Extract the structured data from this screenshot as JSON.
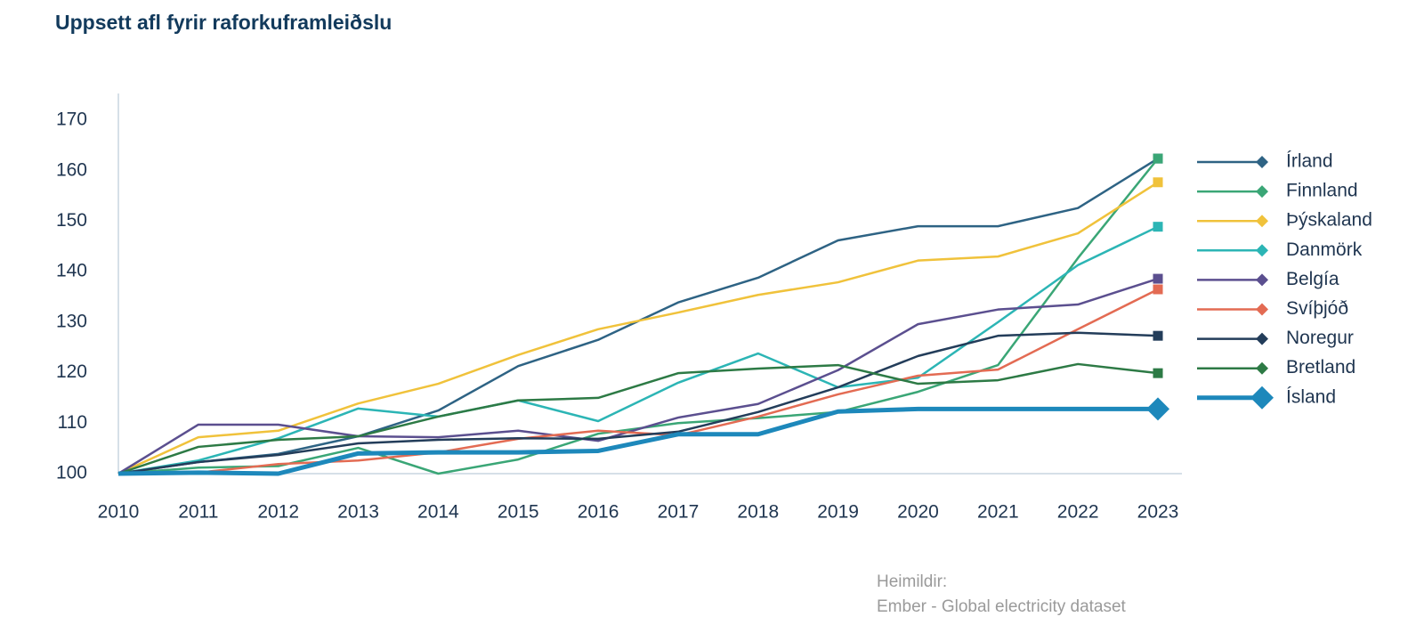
{
  "chart_data": {
    "type": "line",
    "title": "Uppsett afl fyrir raforkuframleiðslu",
    "source": [
      "Heimildir:",
      "Ember - Global electricity dataset"
    ],
    "x": [
      2010,
      2011,
      2012,
      2013,
      2014,
      2015,
      2016,
      2017,
      2018,
      2019,
      2020,
      2021,
      2022,
      2023
    ],
    "xlim": [
      2010,
      2023
    ],
    "xticks": [
      2010,
      2011,
      2012,
      2013,
      2014,
      2015,
      2016,
      2017,
      2018,
      2019,
      2020,
      2021,
      2022,
      2023
    ],
    "ylim": [
      100,
      170
    ],
    "yticks": [
      100,
      110,
      120,
      130,
      140,
      150,
      160,
      170
    ],
    "grid": false,
    "legend": "right",
    "series": [
      {
        "name": "Írland",
        "color": "#2e6384",
        "line_width": 2.5,
        "values": [
          100,
          102.3,
          103.9,
          107.4,
          112.5,
          121.3,
          126.5,
          133.9,
          138.8,
          146.2,
          149,
          149,
          152.6,
          162.4
        ]
      },
      {
        "name": "Finnland",
        "color": "#3aa676",
        "line_width": 2.5,
        "values": [
          100,
          101.2,
          101.5,
          105.1,
          100,
          102.8,
          107.9,
          110,
          111,
          112.2,
          116.2,
          121.5,
          142.7,
          162.4
        ]
      },
      {
        "name": "Þýskaland",
        "color": "#f0c23b",
        "line_width": 2.5,
        "values": [
          100,
          107.2,
          108.5,
          113.9,
          117.8,
          123.5,
          128.6,
          131.9,
          135.4,
          137.9,
          142.2,
          143,
          147.6,
          157.7
        ]
      },
      {
        "name": "Danmörk",
        "color": "#2cb5b5",
        "line_width": 2.5,
        "values": [
          100,
          102.6,
          107,
          112.9,
          111.3,
          114.5,
          110.4,
          118,
          123.8,
          117.1,
          119,
          130,
          141.3,
          148.9
        ]
      },
      {
        "name": "Belgía",
        "color": "#5b4f8f",
        "line_width": 2.5,
        "values": [
          100,
          109.7,
          109.7,
          107.4,
          107.2,
          108.5,
          106.5,
          111.1,
          113.8,
          120.5,
          129.6,
          132.5,
          133.5,
          138.6
        ]
      },
      {
        "name": "Svíþjóð",
        "color": "#e36b53",
        "line_width": 2.5,
        "values": [
          100,
          100.2,
          101.9,
          102.6,
          104.2,
          106.9,
          108.5,
          107.6,
          111.3,
          115.7,
          119.4,
          120.6,
          128.6,
          136.5
        ]
      },
      {
        "name": "Noregur",
        "color": "#233d5a",
        "line_width": 2.5,
        "values": [
          100,
          102.3,
          103.7,
          106,
          106.7,
          107,
          106.9,
          108.3,
          112.2,
          117.1,
          123.3,
          127.3,
          127.9,
          127.3
        ]
      },
      {
        "name": "Bretland",
        "color": "#2d7a45",
        "line_width": 2.5,
        "values": [
          100,
          105.3,
          106.7,
          107.4,
          111.3,
          114.5,
          115,
          119.9,
          120.8,
          121.5,
          117.8,
          118.5,
          121.7,
          119.9
        ]
      },
      {
        "name": "Ísland",
        "color": "#1d88bb",
        "line_width": 5,
        "values": [
          100,
          100.2,
          100,
          104,
          104.2,
          104.2,
          104.5,
          107.8,
          107.8,
          112.3,
          112.8,
          112.8,
          112.8,
          112.8
        ]
      }
    ]
  }
}
